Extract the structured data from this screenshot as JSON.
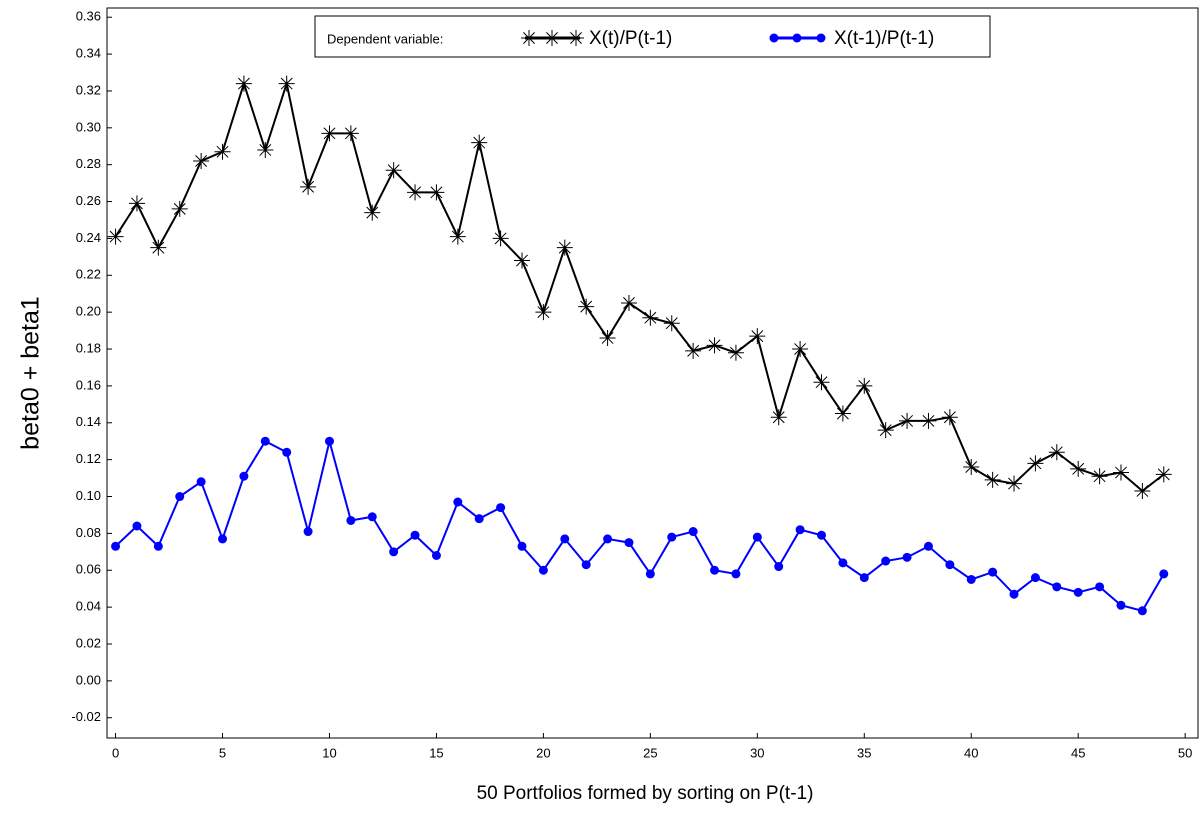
{
  "chart_data": {
    "type": "line",
    "x_label": "50 Portfolios formed by sorting on P(t-1)",
    "y_label": "beta0 + beta1",
    "legend_title": "Dependent variable:",
    "legend": "top",
    "x": [
      0,
      1,
      2,
      3,
      4,
      5,
      6,
      7,
      8,
      9,
      10,
      11,
      12,
      13,
      14,
      15,
      16,
      17,
      18,
      19,
      20,
      21,
      22,
      23,
      24,
      25,
      26,
      27,
      28,
      29,
      30,
      31,
      32,
      33,
      34,
      35,
      36,
      37,
      38,
      39,
      40,
      41,
      42,
      43,
      44,
      45,
      46,
      47,
      48,
      49
    ],
    "series": [
      {
        "name": "X(t)/P(t-1)",
        "color": "#000000",
        "marker": "star",
        "values": [
          0.241,
          0.259,
          0.235,
          0.256,
          0.282,
          0.287,
          0.324,
          0.288,
          0.324,
          0.268,
          0.297,
          0.297,
          0.254,
          0.277,
          0.265,
          0.265,
          0.241,
          0.292,
          0.24,
          0.228,
          0.2,
          0.235,
          0.203,
          0.186,
          0.205,
          0.197,
          0.194,
          0.179,
          0.182,
          0.178,
          0.187,
          0.143,
          0.18,
          0.162,
          0.145,
          0.16,
          0.136,
          0.141,
          0.141,
          0.143,
          0.116,
          0.109,
          0.107,
          0.118,
          0.124,
          0.115,
          0.111,
          0.113,
          0.103,
          0.112
        ]
      },
      {
        "name": "X(t-1)/P(t-1)",
        "color": "#0000ff",
        "marker": "dot",
        "values": [
          0.073,
          0.084,
          0.073,
          0.1,
          0.108,
          0.077,
          0.111,
          0.13,
          0.124,
          0.081,
          0.13,
          0.087,
          0.089,
          0.07,
          0.079,
          0.068,
          0.097,
          0.088,
          0.094,
          0.073,
          0.06,
          0.077,
          0.063,
          0.077,
          0.075,
          0.058,
          0.078,
          0.081,
          0.06,
          0.058,
          0.078,
          0.062,
          0.082,
          0.079,
          0.064,
          0.056,
          0.065,
          0.067,
          0.073,
          0.063,
          0.055,
          0.059,
          0.047,
          0.056,
          0.051,
          0.048,
          0.051,
          0.041,
          0.038,
          0.058
        ]
      }
    ],
    "xlim": [
      -0.4,
      50.6
    ],
    "xticks": [
      0,
      5,
      10,
      15,
      20,
      25,
      30,
      35,
      40,
      45,
      50
    ],
    "ylim": [
      -0.031,
      0.365
    ],
    "yticks": [
      -0.02,
      {
        "value": 0,
        "label": "0.00"
      },
      0.02,
      0.04,
      0.06,
      0.08,
      {
        "value": 0.1,
        "label": "0.10"
      },
      0.12,
      0.14,
      0.16,
      0.18,
      {
        "value": 0.2,
        "label": "0.20"
      },
      0.22,
      0.24,
      0.26,
      0.28,
      {
        "value": 0.3,
        "label": "0.30"
      },
      0.32,
      0.34,
      0.36
    ],
    "grid": false
  }
}
